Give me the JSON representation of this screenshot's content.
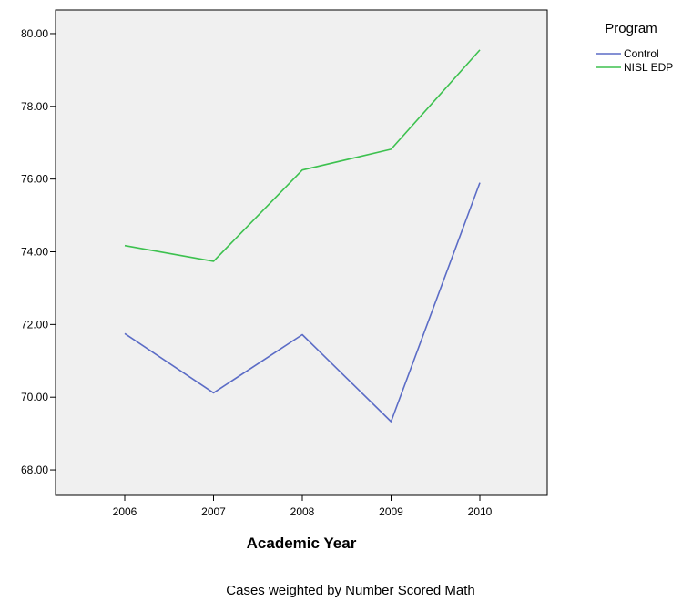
{
  "chart_data": {
    "type": "line",
    "xlabel": "Academic Year",
    "ylabel": "",
    "categories": [
      "2006",
      "2007",
      "2008",
      "2009",
      "2010"
    ],
    "ylim": [
      67.3,
      80.65
    ],
    "yticks": [
      "68.00",
      "70.00",
      "72.00",
      "74.00",
      "76.00",
      "78.00",
      "80.00"
    ],
    "ytick_values": [
      68,
      70,
      72,
      74,
      76,
      78,
      80
    ],
    "grid": false,
    "plot_background": "#f0f0f0",
    "series": [
      {
        "name": "Control",
        "color": "#5b6cc6",
        "values": [
          71.75,
          70.12,
          71.72,
          69.33,
          75.9
        ]
      },
      {
        "name": "NISL EDP",
        "color": "#3dc14f",
        "values": [
          74.17,
          73.74,
          76.25,
          76.82,
          79.55
        ]
      }
    ],
    "legend": {
      "title": "Program",
      "placement": "top-right"
    },
    "footnote": "Cases weighted by Number Scored Math"
  }
}
